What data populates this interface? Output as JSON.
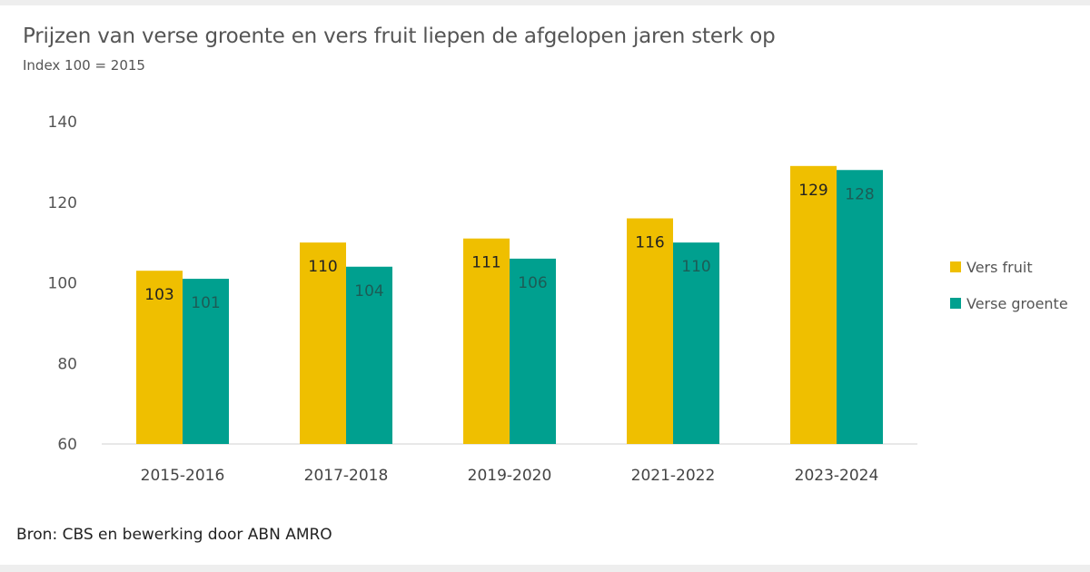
{
  "chart_data": {
    "type": "bar",
    "title": "Prijzen van verse groente en vers fruit liepen de afgelopen jaren sterk op",
    "subtitle": "Index 100 = 2015",
    "source": "Bron: CBS en bewerking door ABN AMRO",
    "categories": [
      "2015-2016",
      "2017-2018",
      "2019-2020",
      "2021-2022",
      "2023-2024"
    ],
    "series": [
      {
        "name": "Vers fruit",
        "color": "#EFBF00",
        "values": [
          103,
          110,
          111,
          116,
          129
        ]
      },
      {
        "name": "Verse groente",
        "color": "#00A08F",
        "values": [
          101,
          104,
          106,
          110,
          128
        ]
      }
    ],
    "ylim": [
      60,
      140
    ],
    "yticks": [
      60,
      80,
      100,
      120,
      140
    ],
    "xlabel": "",
    "ylabel": "",
    "grid": false,
    "legend": "right",
    "data_labels": true
  }
}
